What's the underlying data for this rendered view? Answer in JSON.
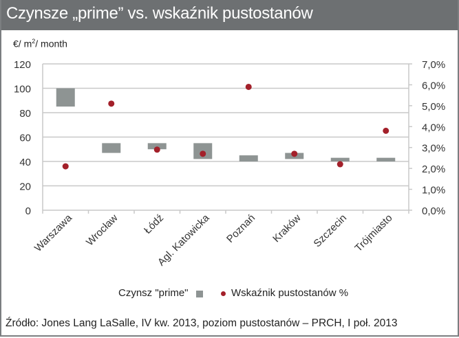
{
  "header": {
    "title": "Czynsze „prime” vs. wskaźnik pustostanów"
  },
  "unit_label": {
    "prefix": "€/ m",
    "sup": "2",
    "suffix": "/ month"
  },
  "legend": {
    "rent_label": "Czynsz \"prime\"",
    "vacancy_label": "Wskaźnik pustostanów %"
  },
  "source": "Źródło: Jones Lang LaSalle, IV kw. 2013, poziom pustostanów – PRCH, I poł. 2013",
  "colors": {
    "header_bg": "#6d7072",
    "bar": "#8e9493",
    "dot": "#a3202a",
    "grid": "#c8c8c8"
  },
  "chart_data": {
    "type": "bar",
    "title": "Czynsze „prime” vs. wskaźnik pustostanów",
    "categories": [
      "Warszawa",
      "Wrocław",
      "Łódź",
      "Agl. Katowicka",
      "Poznań",
      "Kraków",
      "Szczecin",
      "Trójmiasto"
    ],
    "series": [
      {
        "name": "Czynsz \"prime\"",
        "type": "floating-bar",
        "axis": "left",
        "low": [
          85,
          47,
          50,
          42,
          40,
          42,
          40,
          40
        ],
        "high": [
          100,
          55,
          55,
          55,
          45,
          47,
          43,
          43
        ]
      },
      {
        "name": "Wskaźnik pustostanów %",
        "type": "scatter",
        "axis": "right",
        "values": [
          2.1,
          5.1,
          2.9,
          2.7,
          5.9,
          2.7,
          2.2,
          3.8
        ]
      }
    ],
    "ylabel": "€/ m2/ month",
    "ylim": [
      0,
      120
    ],
    "yticks": [
      "0",
      "20",
      "40",
      "60",
      "80",
      "100",
      "120"
    ],
    "y2lim": [
      0,
      7
    ],
    "y2ticks": [
      "0,0%",
      "1,0%",
      "2,0%",
      "3,0%",
      "4,0%",
      "5,0%",
      "6,0%",
      "7,0%"
    ],
    "grid": true,
    "legend_position": "bottom"
  }
}
